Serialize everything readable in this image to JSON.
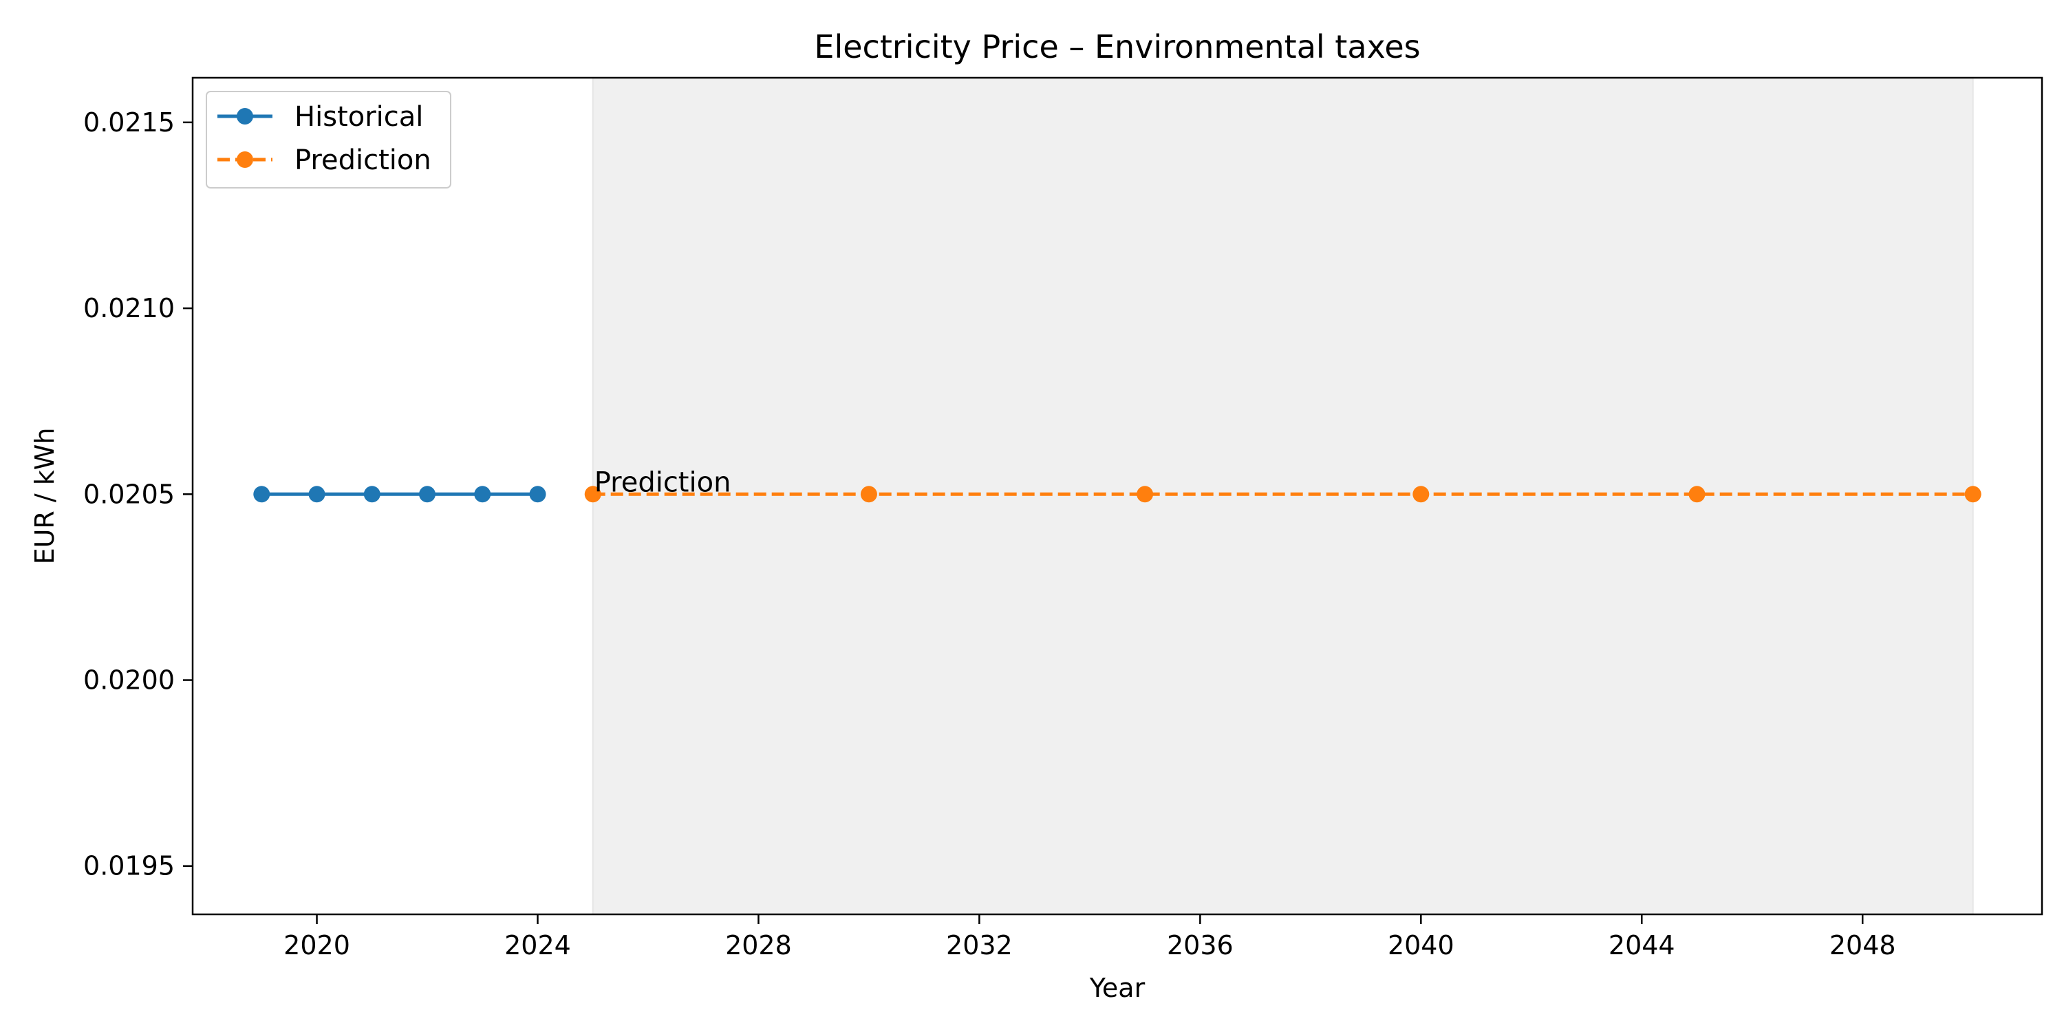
{
  "chart_data": {
    "type": "line",
    "title": "Electricity Price – Environmental taxes",
    "xlabel": "Year",
    "ylabel": "EUR / kWh",
    "xlim": [
      2017.75,
      2051.25
    ],
    "ylim": [
      0.01937,
      0.02162
    ],
    "xticks": [
      2020,
      2024,
      2028,
      2032,
      2036,
      2040,
      2044,
      2048
    ],
    "xtick_labels": [
      "2020",
      "2024",
      "2028",
      "2032",
      "2036",
      "2040",
      "2044",
      "2048"
    ],
    "yticks": [
      0.0195,
      0.02,
      0.0205,
      0.021,
      0.0215
    ],
    "ytick_labels": [
      "0.0195",
      "0.0200",
      "0.0205",
      "0.0210",
      "0.0215"
    ],
    "grid": false,
    "legend_position": "top-left",
    "prediction_region": {
      "x_start": 2025,
      "x_end": 2050,
      "color": "#f0f0f0"
    },
    "annotations": [
      {
        "text": "Prediction",
        "x": 2025,
        "y": 0.0205
      }
    ],
    "series": [
      {
        "name": "Historical",
        "style": "solid",
        "color": "#1f77b4",
        "x": [
          2019,
          2020,
          2021,
          2022,
          2023,
          2024
        ],
        "y": [
          0.0205,
          0.0205,
          0.0205,
          0.0205,
          0.0205,
          0.0205
        ]
      },
      {
        "name": "Prediction",
        "style": "dashed",
        "color": "#ff7f0e",
        "x": [
          2025,
          2030,
          2035,
          2040,
          2045,
          2050
        ],
        "y": [
          0.0205,
          0.0205,
          0.0205,
          0.0205,
          0.0205,
          0.0205
        ]
      }
    ]
  }
}
